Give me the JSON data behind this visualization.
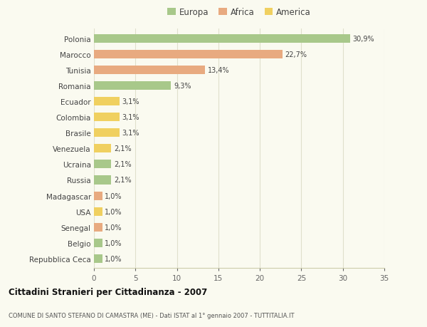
{
  "countries": [
    "Polonia",
    "Marocco",
    "Tunisia",
    "Romania",
    "Ecuador",
    "Colombia",
    "Brasile",
    "Venezuela",
    "Ucraina",
    "Russia",
    "Madagascar",
    "USA",
    "Senegal",
    "Belgio",
    "Repubblica Ceca"
  ],
  "values": [
    30.9,
    22.7,
    13.4,
    9.3,
    3.1,
    3.1,
    3.1,
    2.1,
    2.1,
    2.1,
    1.0,
    1.0,
    1.0,
    1.0,
    1.0
  ],
  "labels": [
    "30,9%",
    "22,7%",
    "13,4%",
    "9,3%",
    "3,1%",
    "3,1%",
    "3,1%",
    "2,1%",
    "2,1%",
    "2,1%",
    "1,0%",
    "1,0%",
    "1,0%",
    "1,0%",
    "1,0%"
  ],
  "continents": [
    "Europa",
    "Africa",
    "Africa",
    "Europa",
    "America",
    "America",
    "America",
    "America",
    "Europa",
    "Europa",
    "Africa",
    "America",
    "Africa",
    "Europa",
    "Europa"
  ],
  "colors": {
    "Europa": "#a8c88a",
    "Africa": "#e8aa80",
    "America": "#f0d060"
  },
  "background_color": "#fafaf0",
  "grid_color": "#e0e0cc",
  "title": "Cittadini Stranieri per Cittadinanza - 2007",
  "subtitle": "COMUNE DI SANTO STEFANO DI CAMASTRA (ME) - Dati ISTAT al 1° gennaio 2007 - TUTTITALIA.IT",
  "xlim": [
    0,
    35
  ],
  "xticks": [
    0,
    5,
    10,
    15,
    20,
    25,
    30,
    35
  ],
  "bar_height": 0.55
}
